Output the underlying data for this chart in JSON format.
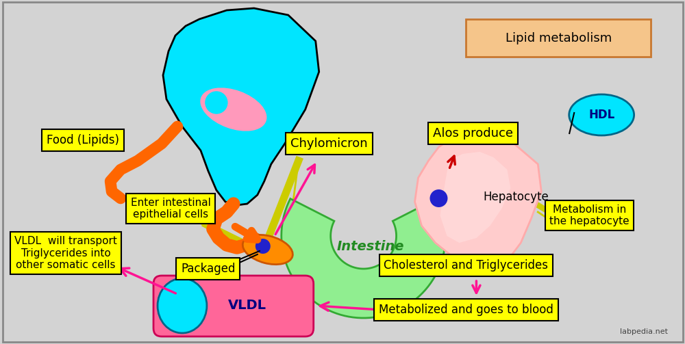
{
  "background_color": "#d3d3d3",
  "figsize": [
    10.0,
    5.03
  ],
  "dpi": 100,
  "labels": {
    "food_lipids": "Food (Lipids)",
    "chylomicron": "Chylomicron",
    "enter_intestinal": "Enter intestinal\nepithelial cells",
    "packaged": "Packaged",
    "intestine": "Intestine",
    "hepatocyte": "Hepatocyte",
    "alos_produce": "Alos produce",
    "hdl": "HDL",
    "lipid_metabolism": "Lipid metabolism",
    "metabolism_hepatocyte": "Metabolism in\nthe hepatocyte",
    "cholesterol_triglycerides": "Cholesterol and Triglycerides",
    "metabolized": "Metabolized and goes to blood",
    "vldl": "VLDL",
    "vldl_transport": "VLDL  will transport\nTriglycerides into\nother somatic cells",
    "labpedia": "labpedia.net"
  },
  "colors": {
    "background": "#d3d3d3",
    "cyan_cell": "#00e5ff",
    "pink_nucleus": "#ff99bb",
    "blue_dot": "#2222cc",
    "intestine_green": "#90ee90",
    "orange_cell": "#ff8c00",
    "hepatocyte_light": "#ffcccc",
    "hepatocyte_dark": "#ffaaaa",
    "yellow_box": "#ffff00",
    "yellow_box_border": "#000000",
    "lipid_box_bg": "#f4c080",
    "hdl_cyan": "#00e5ff",
    "vldl_pink": "#ff6699",
    "vldl_cyan_end": "#00e5ff",
    "arrow_magenta": "#ff1493",
    "arrow_red": "#cc0000",
    "arrow_orange": "#ff6600",
    "text_color": "#000000"
  }
}
